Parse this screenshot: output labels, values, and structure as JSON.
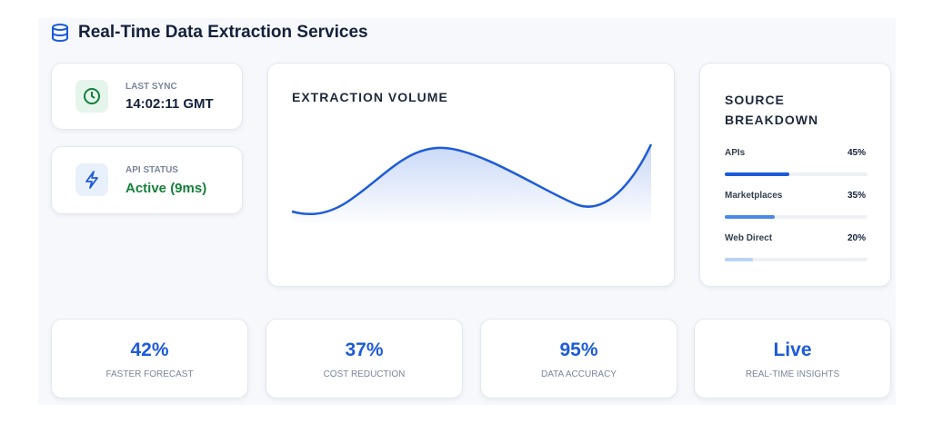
{
  "header": {
    "title": "Real-Time Data Extraction Services"
  },
  "status_cards": [
    {
      "label": "LAST SYNC",
      "value": "14:02:11 GMT"
    },
    {
      "label": "API STATUS",
      "value": "Active (9ms)"
    }
  ],
  "volume_panel": {
    "title": "EXTRACTION VOLUME"
  },
  "breakdown": {
    "title": "SOURCE BREAKDOWN",
    "items": [
      {
        "label": "APIs",
        "percent": 45,
        "percent_label": "45%",
        "color": "#1d5bd8"
      },
      {
        "label": "Marketplaces",
        "percent": 35,
        "percent_label": "35%",
        "color": "#4a8ae6"
      },
      {
        "label": "Web Direct",
        "percent": 20,
        "percent_label": "20%",
        "color": "#b9d2f6"
      }
    ]
  },
  "stats": [
    {
      "value": "42%",
      "label": "FASTER FORECAST"
    },
    {
      "value": "37%",
      "label": "COST REDUCTION"
    },
    {
      "value": "95%",
      "label": "DATA ACCURACY"
    },
    {
      "value": "Live",
      "label": "REAL-TIME INSIGHTS"
    }
  ]
}
